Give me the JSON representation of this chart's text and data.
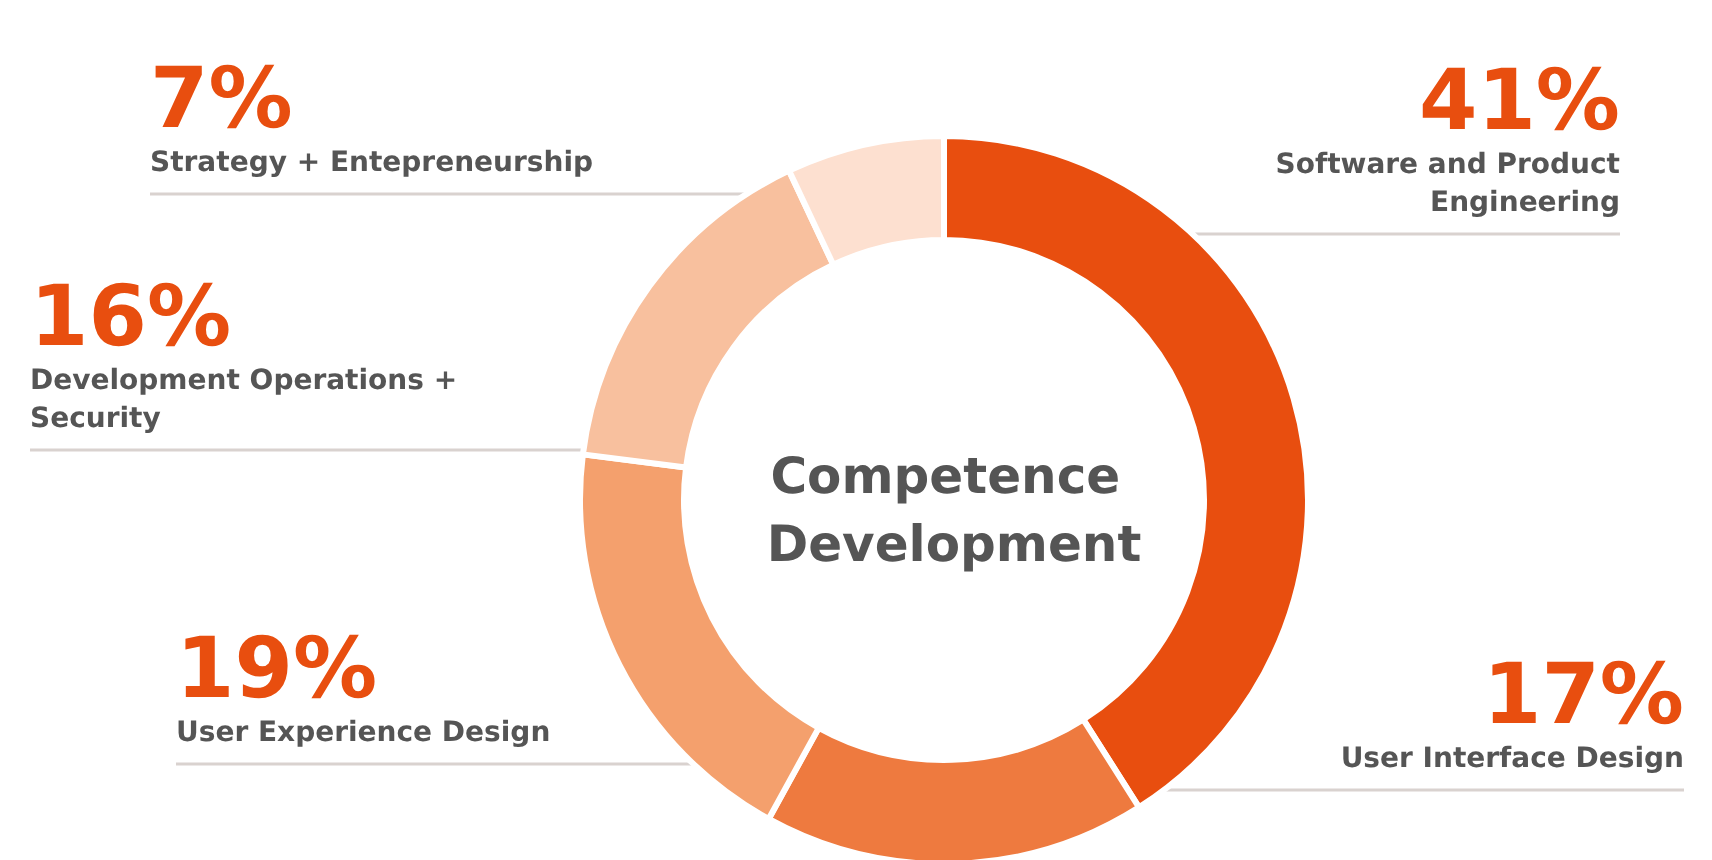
{
  "chart_data": {
    "type": "donut",
    "title": "Competence Development",
    "categories": [
      "Software and Product Engineering",
      "User Interface Design",
      "User Experience Design",
      "Development Operations + Security",
      "Strategy + Entepreneurship"
    ],
    "values": [
      41,
      17,
      19,
      16,
      7
    ],
    "value_labels": [
      "41%",
      "17%",
      "19%",
      "16%",
      "7%"
    ],
    "colors": [
      "#e84e0f",
      "#ee7a3f",
      "#f4a06d",
      "#f8c09e",
      "#fde0d0"
    ],
    "legend": false
  }
}
